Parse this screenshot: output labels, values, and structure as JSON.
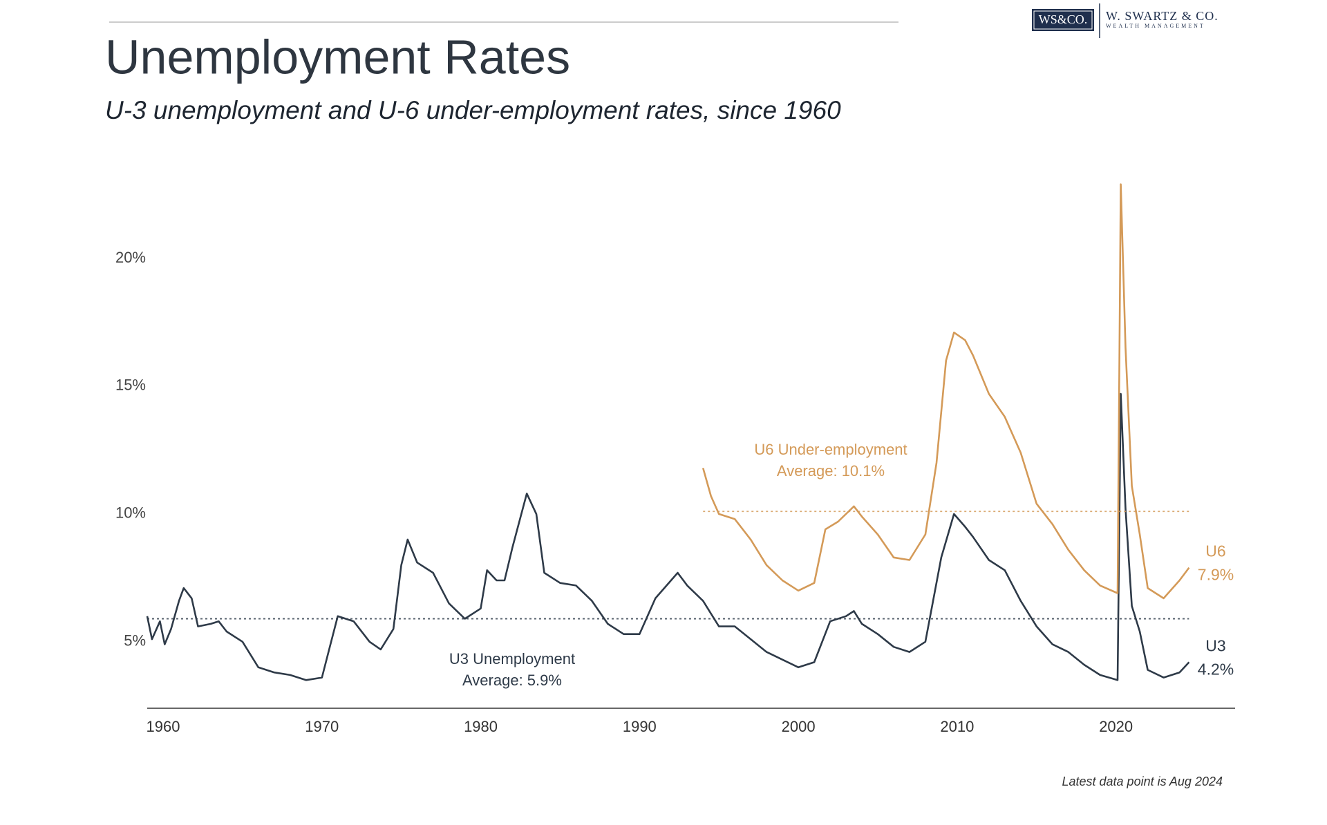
{
  "header": {
    "logo": "WS&CO.",
    "firm": "W. SWARTZ & CO.",
    "tagline": "WEALTH MANAGEMENT"
  },
  "chart_data": {
    "type": "line",
    "title": "Unemployment Rates",
    "subtitle": "U-3 unemployment and U-6 under-employment rates, since 1960",
    "footnote": "Latest data point is Aug 2024",
    "xlim": [
      1959,
      2027.5
    ],
    "xticks": [
      1960,
      1970,
      1980,
      1990,
      2000,
      2010,
      2020
    ],
    "ylim": [
      2.4,
      23
    ],
    "yticks": [
      {
        "value": 5,
        "label": "5%"
      },
      {
        "value": 10,
        "label": "10%"
      },
      {
        "value": 15,
        "label": "15%"
      },
      {
        "value": 20,
        "label": "20%"
      }
    ],
    "grid": false,
    "series": [
      {
        "name": "U3",
        "color": "#2e3a48",
        "end_label": "4.2%",
        "average": 5.9,
        "annotation": [
          "U3 Unemployment",
          "Average: 5.9%"
        ],
        "x": [
          1959,
          1959.3,
          1959.8,
          1960.1,
          1960.5,
          1961,
          1961.3,
          1961.8,
          1962.2,
          1963,
          1963.5,
          1964,
          1965,
          1966,
          1967,
          1968,
          1969,
          1970,
          1970.5,
          1971,
          1972,
          1973,
          1973.7,
          1974.5,
          1975,
          1975.4,
          1976,
          1977,
          1978,
          1979,
          1980,
          1980.4,
          1981,
          1981.5,
          1982,
          1982.9,
          1983.5,
          1984,
          1985,
          1986,
          1987,
          1988,
          1989,
          1990,
          1991,
          1992.4,
          1993,
          1994,
          1995,
          1996,
          1997,
          1998,
          1999,
          2000,
          2001,
          2002,
          2003,
          2003.5,
          2004,
          2005,
          2006,
          2007,
          2008,
          2009,
          2009.8,
          2010.5,
          2011,
          2012,
          2013,
          2014,
          2015,
          2016,
          2017,
          2018,
          2019,
          2020.1,
          2020.3,
          2020.6,
          2021,
          2021.5,
          2022,
          2023,
          2024,
          2024.6
        ],
        "values": [
          6.0,
          5.1,
          5.8,
          4.9,
          5.5,
          6.6,
          7.1,
          6.7,
          5.6,
          5.7,
          5.8,
          5.4,
          5.0,
          4.0,
          3.8,
          3.7,
          3.5,
          3.6,
          4.8,
          6.0,
          5.8,
          5.0,
          4.7,
          5.5,
          8.0,
          9.0,
          8.1,
          7.7,
          6.5,
          5.9,
          6.3,
          7.8,
          7.4,
          7.4,
          8.7,
          10.8,
          10.0,
          7.7,
          7.3,
          7.2,
          6.6,
          5.7,
          5.3,
          5.3,
          6.7,
          7.7,
          7.2,
          6.6,
          5.6,
          5.6,
          5.1,
          4.6,
          4.3,
          4.0,
          4.2,
          5.8,
          6.0,
          6.2,
          5.7,
          5.3,
          4.8,
          4.6,
          5.0,
          8.3,
          10.0,
          9.5,
          9.1,
          8.2,
          7.8,
          6.6,
          5.6,
          4.9,
          4.6,
          4.1,
          3.7,
          3.5,
          14.7,
          10.2,
          6.4,
          5.4,
          3.9,
          3.6,
          3.8,
          4.2
        ]
      },
      {
        "name": "U6",
        "color": "#d49a58",
        "end_label": "7.9%",
        "average": 10.1,
        "annotation": [
          "U6 Under-employment",
          "Average: 10.1%"
        ],
        "x": [
          1994,
          1994.5,
          1995,
          1996,
          1997,
          1998,
          1999,
          2000,
          2001,
          2001.7,
          2002.5,
          2003.5,
          2004,
          2005,
          2006,
          2007,
          2008,
          2008.7,
          2009.3,
          2009.8,
          2010.5,
          2011,
          2012,
          2013,
          2014,
          2015,
          2016,
          2017,
          2018,
          2019,
          2020.1,
          2020.3,
          2020.6,
          2021,
          2021.5,
          2022,
          2023,
          2024,
          2024.6
        ],
        "values": [
          11.8,
          10.7,
          10.0,
          9.8,
          9.0,
          8.0,
          7.4,
          7.0,
          7.3,
          9.4,
          9.7,
          10.3,
          9.9,
          9.2,
          8.3,
          8.2,
          9.2,
          12.0,
          16.0,
          17.1,
          16.8,
          16.2,
          14.7,
          13.8,
          12.4,
          10.4,
          9.6,
          8.6,
          7.8,
          7.2,
          6.9,
          22.9,
          16.5,
          11.1,
          9.2,
          7.1,
          6.7,
          7.4,
          7.9
        ]
      }
    ]
  }
}
